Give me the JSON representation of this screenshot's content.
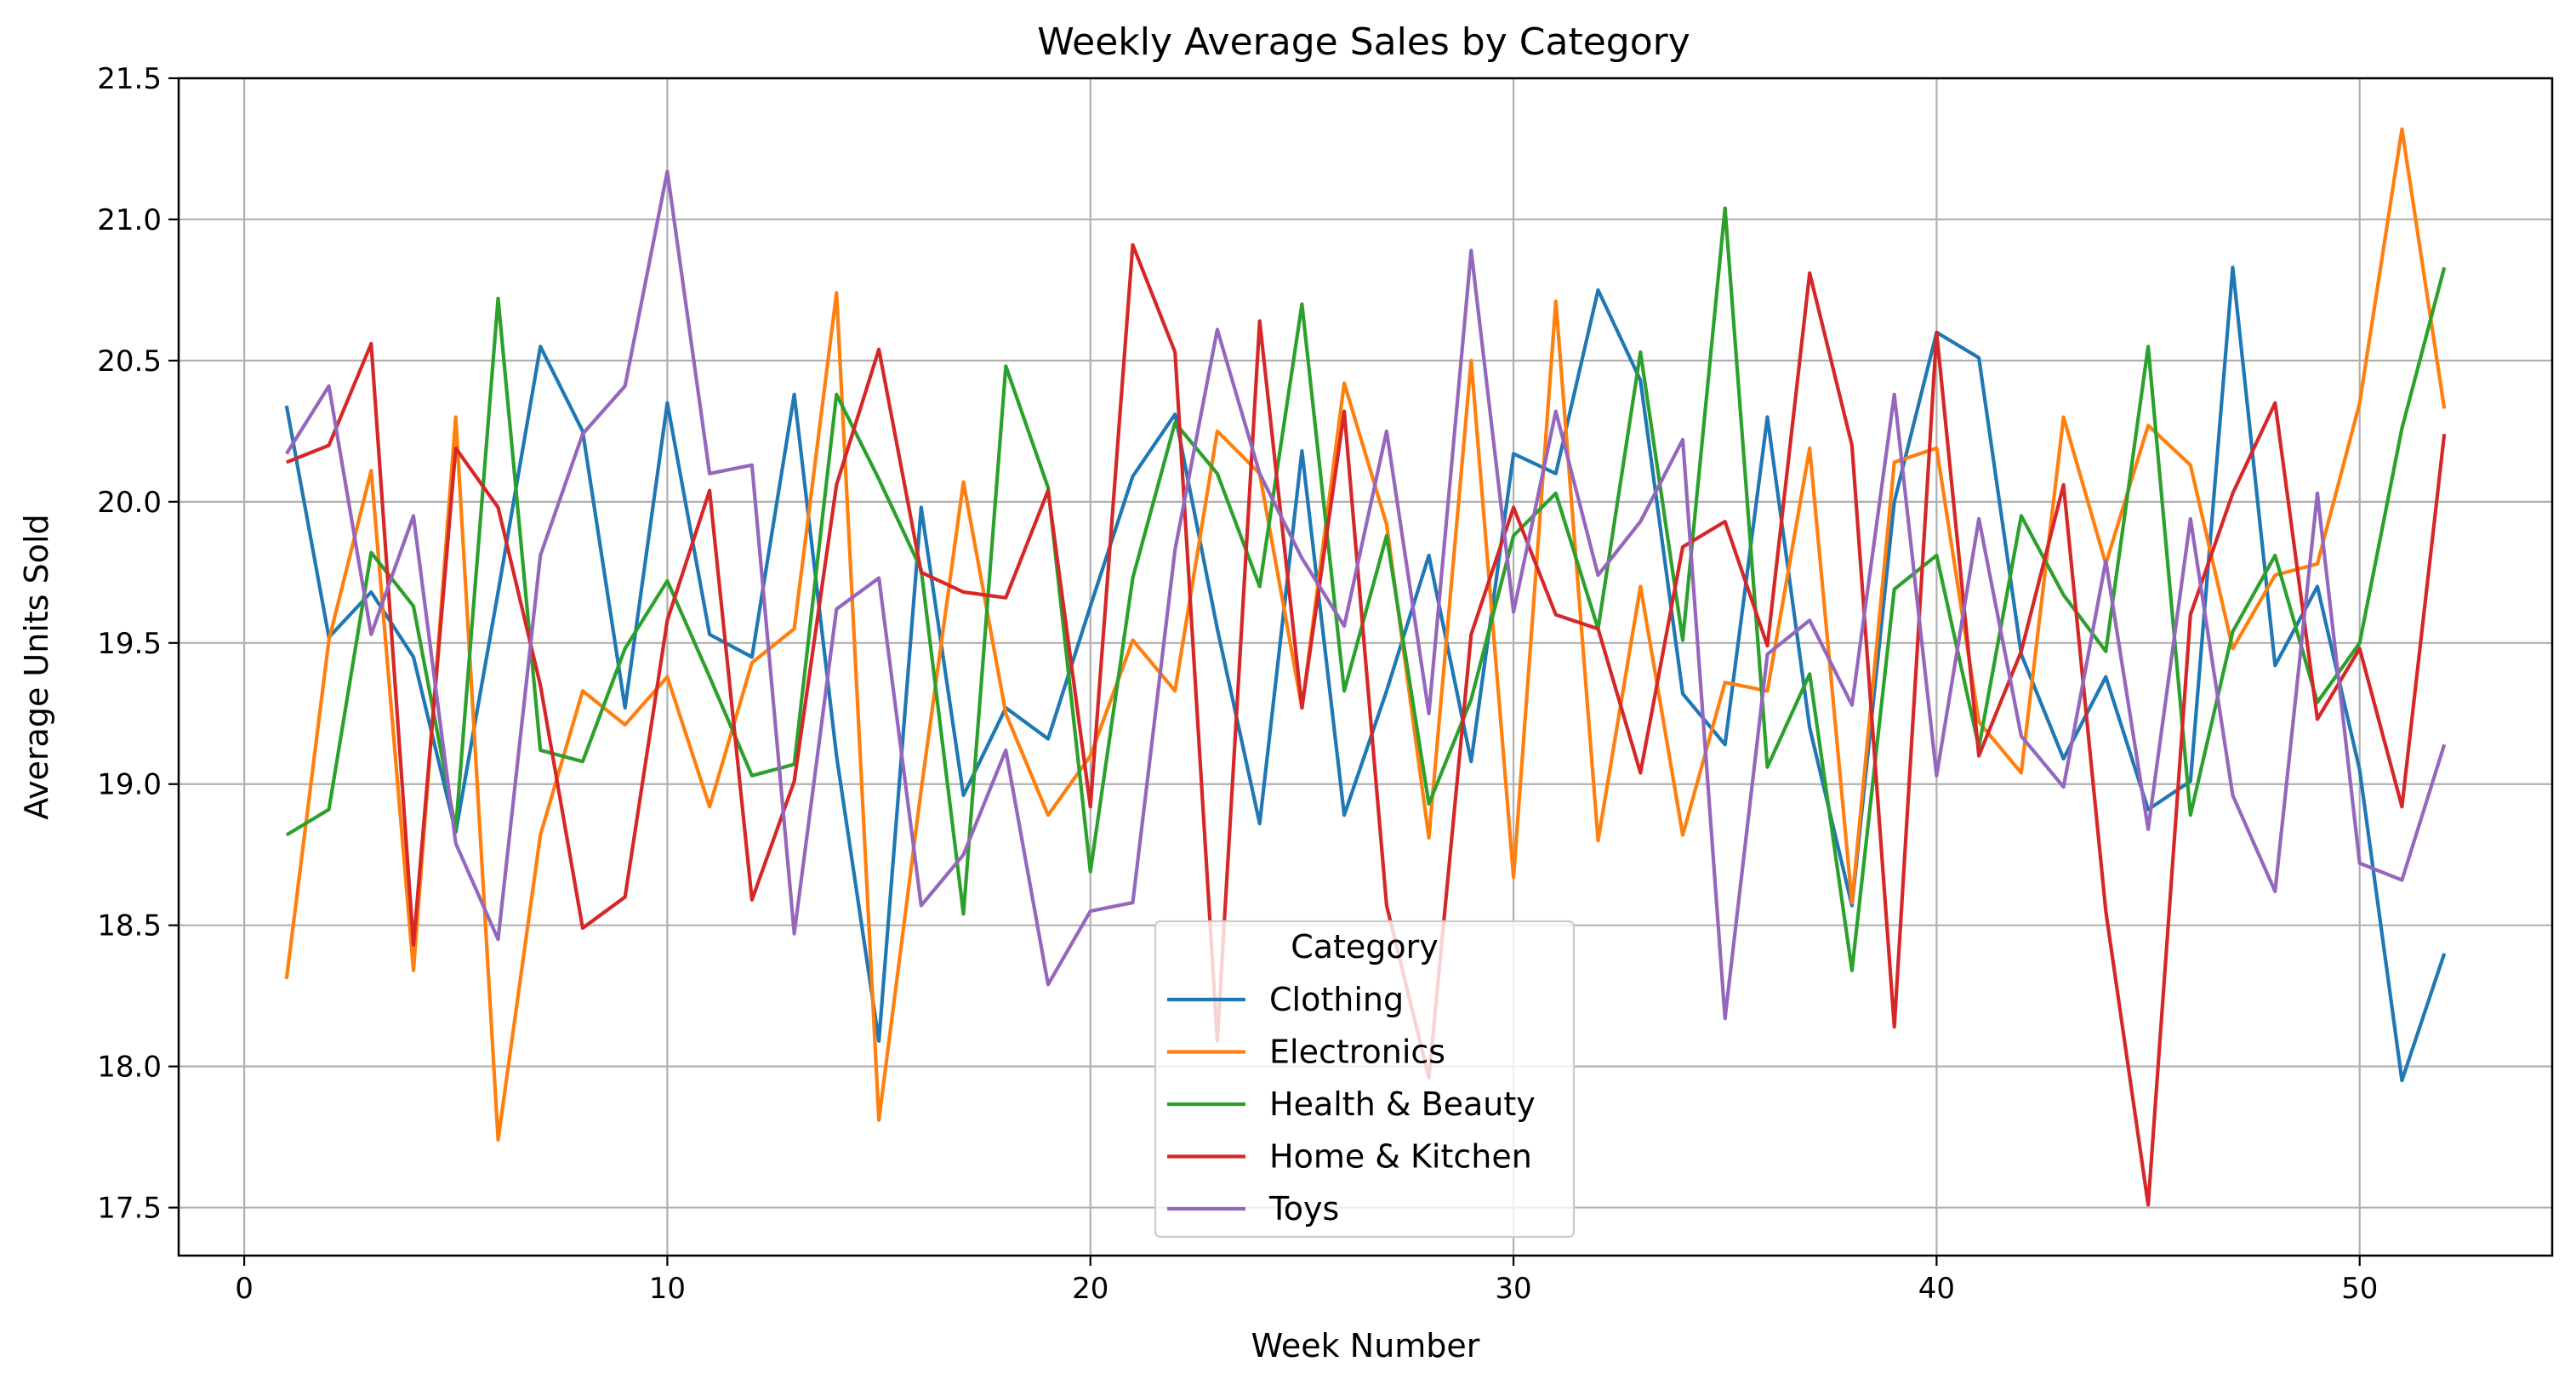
{
  "chart_data": {
    "type": "line",
    "title": "Weekly Average Sales by Category",
    "xlabel": "Week Number",
    "ylabel": "Average Units Sold",
    "xlim": [
      -1.55,
      54.55
    ],
    "ylim": [
      17.33,
      21.5
    ],
    "xticks": [
      0,
      10,
      20,
      30,
      40,
      50
    ],
    "yticks": [
      17.5,
      18.0,
      18.5,
      19.0,
      19.5,
      20.0,
      20.5,
      21.0,
      21.5
    ],
    "ytick_labels": [
      "17.5",
      "18.0",
      "18.5",
      "19.0",
      "19.5",
      "20.0",
      "20.5",
      "21.0",
      "21.5"
    ],
    "grid": true,
    "legend": {
      "title": "Category",
      "placement": "lower-center"
    },
    "x": [
      1,
      2,
      3,
      4,
      5,
      6,
      7,
      8,
      9,
      10,
      11,
      12,
      13,
      14,
      15,
      16,
      17,
      18,
      19,
      20,
      21,
      22,
      23,
      24,
      25,
      26,
      27,
      28,
      29,
      30,
      31,
      32,
      33,
      34,
      35,
      36,
      37,
      38,
      39,
      40,
      41,
      42,
      43,
      44,
      45,
      46,
      47,
      48,
      49,
      50,
      51,
      52
    ],
    "series": [
      {
        "name": "Clothing",
        "color": "#1f77b4",
        "values": [
          20.34,
          19.52,
          19.68,
          19.45,
          18.83,
          19.68,
          20.55,
          20.25,
          19.27,
          20.35,
          19.53,
          19.45,
          20.38,
          19.1,
          18.09,
          19.98,
          18.96,
          19.27,
          19.16,
          19.63,
          20.09,
          20.31,
          19.55,
          18.86,
          20.18,
          18.89,
          19.33,
          19.81,
          19.08,
          20.17,
          20.1,
          20.75,
          20.43,
          19.32,
          19.14,
          20.3,
          19.2,
          18.57,
          20.0,
          20.6,
          20.51,
          19.46,
          19.09,
          19.38,
          18.91,
          19.01,
          20.83,
          19.42,
          19.7,
          19.05,
          17.95,
          18.4
        ]
      },
      {
        "name": "Electronics",
        "color": "#ff7f0e",
        "values": [
          18.31,
          19.51,
          20.11,
          18.34,
          20.3,
          17.74,
          18.82,
          19.33,
          19.21,
          19.38,
          18.92,
          19.43,
          19.55,
          20.74,
          17.81,
          18.98,
          20.07,
          19.25,
          18.89,
          19.1,
          19.51,
          19.33,
          20.25,
          20.1,
          19.27,
          20.42,
          19.92,
          18.81,
          20.5,
          18.67,
          20.71,
          18.8,
          19.7,
          18.82,
          19.36,
          19.33,
          20.19,
          18.58,
          20.14,
          20.19,
          19.22,
          19.04,
          20.3,
          19.78,
          20.27,
          20.13,
          19.48,
          19.74,
          19.78,
          20.35,
          21.32,
          20.33
        ]
      },
      {
        "name": "Health & Beauty",
        "color": "#2ca02c",
        "values": [
          18.82,
          18.91,
          19.82,
          19.63,
          18.84,
          20.72,
          19.12,
          19.08,
          19.48,
          19.72,
          19.38,
          19.03,
          19.07,
          20.38,
          20.08,
          19.76,
          18.54,
          20.48,
          20.05,
          18.69,
          19.73,
          20.28,
          20.1,
          19.7,
          20.7,
          19.33,
          19.88,
          18.93,
          19.3,
          19.88,
          20.03,
          19.55,
          20.53,
          19.51,
          21.04,
          19.06,
          19.39,
          18.34,
          19.69,
          19.81,
          19.13,
          19.95,
          19.67,
          19.47,
          20.55,
          18.89,
          19.54,
          19.81,
          19.29,
          19.5,
          20.26,
          20.83
        ]
      },
      {
        "name": "Home & Kitchen",
        "color": "#d62728",
        "values": [
          20.14,
          20.2,
          20.56,
          18.43,
          20.19,
          19.98,
          19.35,
          18.49,
          18.6,
          19.58,
          20.04,
          18.59,
          19.01,
          20.06,
          20.54,
          19.75,
          19.68,
          19.66,
          20.04,
          18.92,
          20.91,
          20.53,
          18.09,
          20.64,
          19.27,
          20.32,
          18.57,
          17.96,
          19.53,
          19.98,
          19.6,
          19.55,
          19.04,
          19.84,
          19.93,
          19.49,
          20.81,
          20.2,
          18.14,
          20.6,
          19.1,
          19.47,
          20.06,
          18.55,
          17.51,
          19.6,
          20.03,
          20.35,
          19.23,
          19.48,
          18.92,
          20.24
        ]
      },
      {
        "name": "Toys",
        "color": "#9467bd",
        "values": [
          20.17,
          20.41,
          19.53,
          19.95,
          18.79,
          18.45,
          19.81,
          20.24,
          20.41,
          21.17,
          20.1,
          20.13,
          18.47,
          19.62,
          19.73,
          18.57,
          18.75,
          19.12,
          18.29,
          18.55,
          18.58,
          19.83,
          20.61,
          20.1,
          19.8,
          19.56,
          20.25,
          19.25,
          20.89,
          19.61,
          20.32,
          19.74,
          19.93,
          20.22,
          18.17,
          19.46,
          19.58,
          19.28,
          20.38,
          19.03,
          19.94,
          19.17,
          18.99,
          19.79,
          18.84,
          19.94,
          18.96,
          18.62,
          20.03,
          18.72,
          18.66,
          19.14
        ]
      }
    ]
  }
}
